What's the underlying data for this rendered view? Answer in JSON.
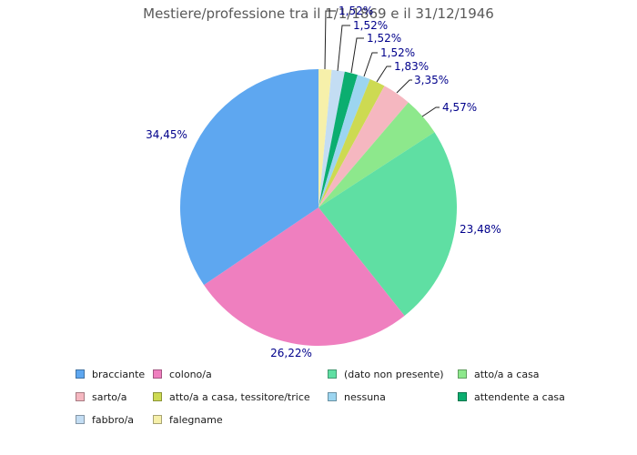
{
  "header": {
    "title": "Mestiere/professione tra il 1/1/1869 e il 31/12/1946"
  },
  "chart_data": {
    "type": "pie",
    "title": "Mestiere/professione tra il 1/1/1869 e il 31/12/1946",
    "value_unit": "%",
    "number_format": "comma decimal separator",
    "orientation": "first slice starts at 12 o'clock; legend order runs counter-clockwise (reverse order drawn clockwise)",
    "legend_position": "bottom",
    "title_color": "#595959",
    "label_color": "#00008B",
    "slices": [
      {
        "label": "bracciante",
        "value": 34.45,
        "display": "34,45%",
        "color": "#5EA7F0"
      },
      {
        "label": "colono/a",
        "value": 26.22,
        "display": "26,22%",
        "color": "#EF7FBF"
      },
      {
        "label": "(dato non presente)",
        "value": 23.48,
        "display": "23,48%",
        "color": "#5FDFA3"
      },
      {
        "label": "atto/a a casa",
        "value": 4.57,
        "display": "4,57%",
        "color": "#8DE88C"
      },
      {
        "label": "sarto/a",
        "value": 3.35,
        "display": "3,35%",
        "color": "#F5B7C0"
      },
      {
        "label": "atto/a a casa, tessitore/trice",
        "value": 1.83,
        "display": "1,83%",
        "color": "#CDDA52"
      },
      {
        "label": "nessuna",
        "value": 1.52,
        "display": "1,52%",
        "color": "#9CD5F0"
      },
      {
        "label": "attendente a casa",
        "value": 1.52,
        "display": "1,52%",
        "color": "#0BAE70"
      },
      {
        "label": "fabbro/a",
        "value": 1.52,
        "display": "1,52%",
        "color": "#C3DDF3"
      },
      {
        "label": "falegname",
        "value": 1.52,
        "display": "1,52%",
        "color": "#F6F0AA"
      }
    ]
  }
}
